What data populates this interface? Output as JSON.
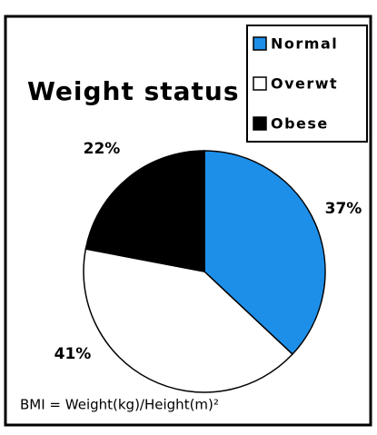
{
  "chart_data": {
    "type": "pie",
    "title": "Weight status",
    "categories": [
      "Normal",
      "Overwt",
      "Obese"
    ],
    "values": [
      37,
      41,
      22
    ],
    "value_labels": [
      "37%",
      "41%",
      "22%"
    ],
    "colors": [
      "#1e8fe8",
      "#ffffff",
      "#000000"
    ],
    "legend": "top-right",
    "note": "BMI = Weight(kg)/Height(m)²"
  }
}
